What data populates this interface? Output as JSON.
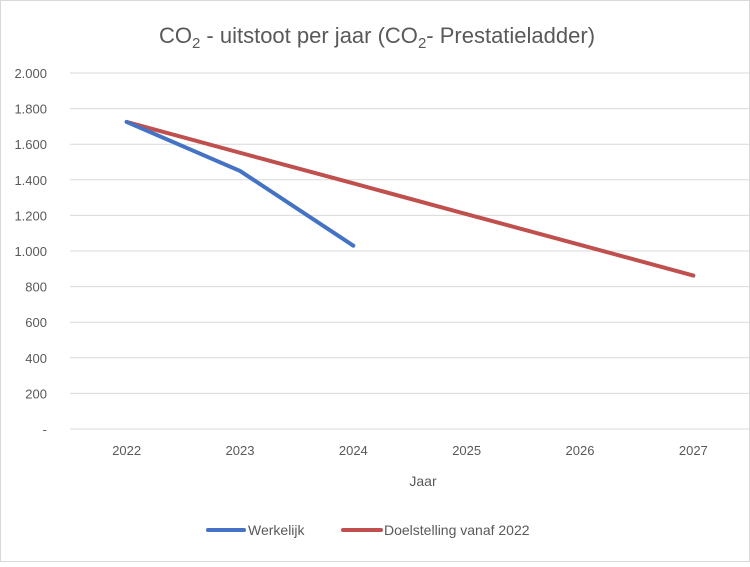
{
  "chart_data": {
    "type": "line",
    "title": {
      "pre": "CO",
      "sub": "2",
      "mid": " - uitstoot per jaar (CO",
      "sub2": "2",
      "post": "- Prestatieladder)"
    },
    "xlabel": "Jaar",
    "ylabel": "",
    "categories": [
      "2022",
      "2023",
      "2024",
      "2025",
      "2026",
      "2027"
    ],
    "y_ticks": [
      0,
      200,
      400,
      600,
      800,
      1000,
      1200,
      1400,
      1600,
      1800,
      2000
    ],
    "y_tick_labels": [
      "-",
      "200",
      "400",
      "600",
      "800",
      "1.000",
      "1.200",
      "1.400",
      "1.600",
      "1.800",
      "2.000"
    ],
    "ylim": [
      0,
      2000
    ],
    "grid": true,
    "legend_position": "bottom",
    "series": [
      {
        "name": "Werkelijk",
        "color": "#4472C4",
        "values": [
          1725,
          1450,
          1030,
          null,
          null,
          null
        ]
      },
      {
        "name": "Doelstelling vanaf 2022",
        "color": "#C0504D",
        "values": [
          1725,
          1552,
          1380,
          1207,
          1035,
          862
        ]
      }
    ]
  }
}
